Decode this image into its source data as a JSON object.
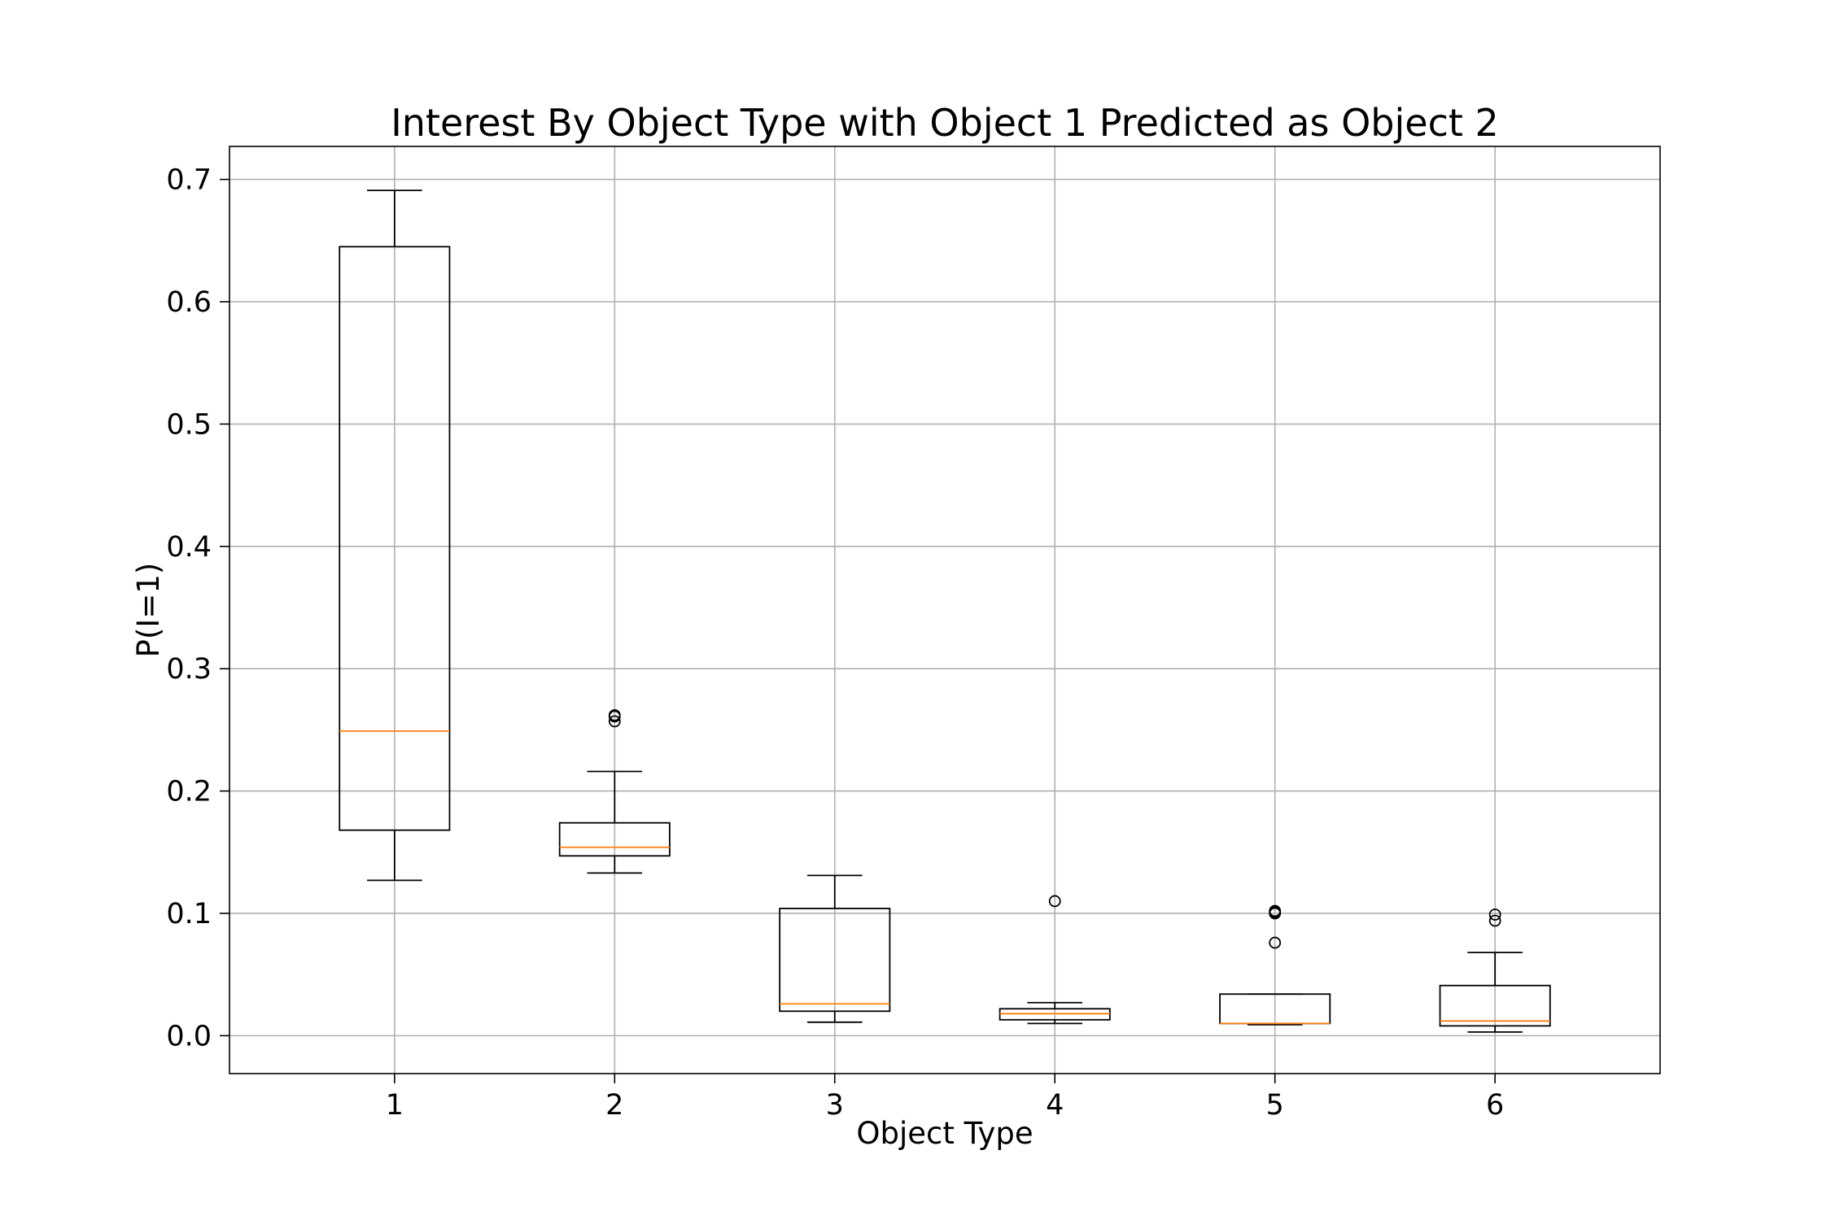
{
  "chart_data": {
    "type": "box",
    "title": "Interest By Object Type with Object 1 Predicted as Object 2",
    "xlabel": "Object Type",
    "ylabel": "P(I=1)",
    "categories": [
      "1",
      "2",
      "3",
      "4",
      "5",
      "6"
    ],
    "ylim": [
      -0.031,
      0.727
    ],
    "yticks": [
      0.0,
      0.1,
      0.2,
      0.3,
      0.4,
      0.5,
      0.6,
      0.7
    ],
    "ytick_labels": [
      "0.0",
      "0.1",
      "0.2",
      "0.3",
      "0.4",
      "0.5",
      "0.6",
      "0.7"
    ],
    "grid": true,
    "boxes": [
      {
        "category": "1",
        "whisker_low": 0.127,
        "q1": 0.168,
        "median": 0.249,
        "q3": 0.645,
        "whisker_high": 0.691,
        "fliers": []
      },
      {
        "category": "2",
        "whisker_low": 0.133,
        "q1": 0.147,
        "median": 0.154,
        "q3": 0.174,
        "whisker_high": 0.216,
        "fliers": [
          0.257,
          0.261,
          0.262
        ]
      },
      {
        "category": "3",
        "whisker_low": 0.011,
        "q1": 0.02,
        "median": 0.026,
        "q3": 0.104,
        "whisker_high": 0.131,
        "fliers": []
      },
      {
        "category": "4",
        "whisker_low": 0.01,
        "q1": 0.013,
        "median": 0.018,
        "q3": 0.022,
        "whisker_high": 0.027,
        "fliers": [
          0.11
        ]
      },
      {
        "category": "5",
        "whisker_low": 0.009,
        "q1": 0.01,
        "median": 0.01,
        "q3": 0.034,
        "whisker_high": 0.034,
        "fliers": [
          0.076,
          0.1,
          0.101,
          0.102
        ]
      },
      {
        "category": "6",
        "whisker_low": 0.003,
        "q1": 0.008,
        "median": 0.012,
        "q3": 0.041,
        "whisker_high": 0.068,
        "fliers": [
          0.094,
          0.099
        ]
      }
    ],
    "colors": {
      "box": "#000000",
      "median": "#ff7f0e",
      "grid": "#b0b0b0"
    }
  }
}
